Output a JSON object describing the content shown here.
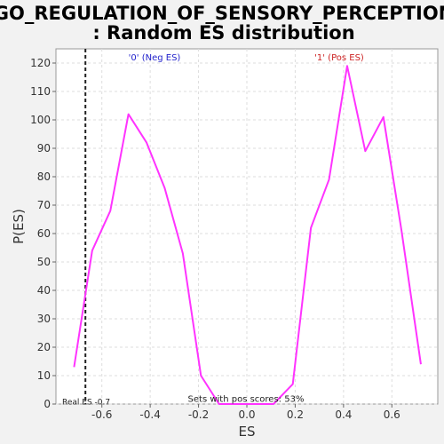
{
  "chart_data": {
    "type": "line",
    "title_lines": [
      "GO_REGULATION_OF_SENSORY_PERCEPTION",
      ": Random ES distribution"
    ],
    "xlabel": "ES",
    "ylabel": "P(ES)",
    "xlim": [
      -0.79,
      0.79
    ],
    "ylim": [
      0,
      125
    ],
    "xticks": [
      -0.6,
      -0.4,
      -0.2,
      0.0,
      0.2,
      0.4,
      0.6
    ],
    "xtick_labels": [
      "-0.6",
      "-0.4",
      "-0.2",
      "0.0",
      "0.2",
      "0.4",
      "0.6"
    ],
    "yticks": [
      0,
      10,
      20,
      30,
      40,
      50,
      60,
      70,
      80,
      90,
      100,
      110,
      120
    ],
    "ytick_labels": [
      "0",
      "10",
      "20",
      "30",
      "40",
      "50",
      "60",
      "70",
      "80",
      "90",
      "100",
      "110",
      "120"
    ],
    "grid": true,
    "series": [
      {
        "color": "#ff33ff",
        "x": [
          -0.715,
          -0.64,
          -0.565,
          -0.49,
          -0.415,
          -0.34,
          -0.265,
          -0.19,
          -0.115,
          -0.04,
          0.035,
          0.11,
          0.19,
          0.265,
          0.34,
          0.415,
          0.49,
          0.565,
          0.64,
          0.72
        ],
        "y": [
          13,
          54,
          68,
          102,
          92,
          76,
          53,
          10,
          0,
          0,
          0,
          0,
          7,
          62,
          79,
          119,
          89,
          101,
          61,
          14
        ]
      }
    ],
    "real_es": -0.668,
    "annotations": {
      "neg_label": "'0' (Neg ES)",
      "neg_color": "#2222cc",
      "pos_label": "'1' (Pos ES)",
      "pos_color": "#cc2222",
      "real_es_label": "Real ES -0.7",
      "pos_scores_label": "Sets with pos scores: 53%"
    }
  }
}
